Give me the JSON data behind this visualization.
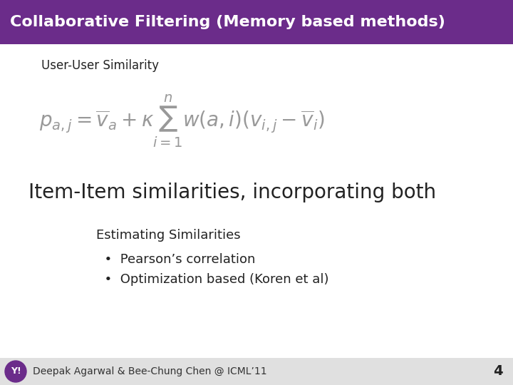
{
  "title": "Collaborative Filtering (Memory based methods)",
  "title_bg": "#6B2C8A",
  "title_color": "#FFFFFF",
  "title_fontsize": 16,
  "bg_color": "#FFFFFF",
  "footer_bg": "#E0E0E0",
  "footer_text": "Deepak Agarwal & Bee-Chung Chen @ ICML’11",
  "footer_page": "4",
  "footer_fontsize": 10,
  "user_user_label": "User-User Similarity",
  "item_item_label": "Item-Item similarities, incorporating both",
  "estimating_label": "Estimating Similarities",
  "bullet1": "Pearson’s correlation",
  "bullet2": "Optimization based (Koren et al)",
  "label_fontsize": 12,
  "item_item_fontsize": 20,
  "estimating_fontsize": 12,
  "formula_fontsize": 16,
  "yahoo_logo_color": "#6B2C8A",
  "formula_color": "#999999",
  "text_color": "#222222"
}
